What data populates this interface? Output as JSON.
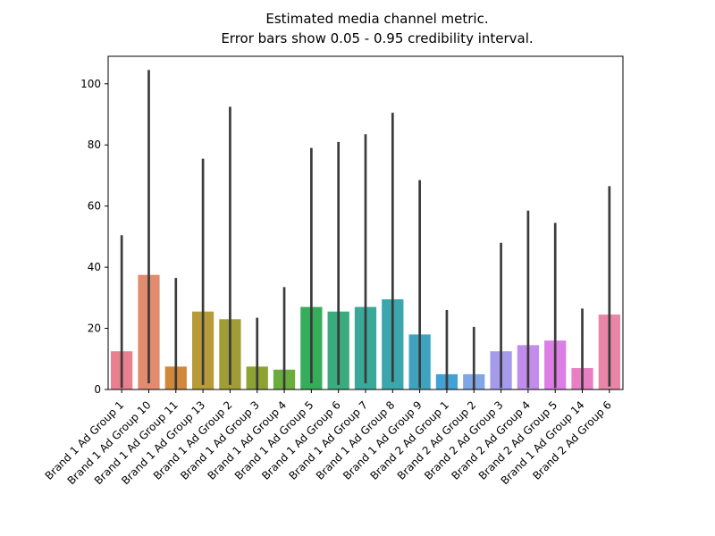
{
  "chart_data": {
    "type": "bar",
    "title_lines": [
      "Estimated media channel metric.",
      "Error bars show 0.05 - 0.95 credibility interval."
    ],
    "xlabel": "",
    "ylabel": "",
    "ylim": [
      0,
      109
    ],
    "yticks": [
      0,
      20,
      40,
      60,
      80,
      100
    ],
    "ytick_labels": [
      "0",
      "20",
      "40",
      "60",
      "80",
      "100"
    ],
    "categories": [
      "Brand 1 Ad Group 1",
      "Brand 1 Ad Group 10",
      "Brand 1 Ad Group 11",
      "Brand 1 Ad Group 13",
      "Brand 1 Ad Group 2",
      "Brand 1 Ad Group 3",
      "Brand 1 Ad Group 4",
      "Brand 1 Ad Group 5",
      "Brand 1 Ad Group 6",
      "Brand 1 Ad Group 7",
      "Brand 1 Ad Group 8",
      "Brand 1 Ad Group 9",
      "Brand 2 Ad Group 1",
      "Brand 2 Ad Group 2",
      "Brand 2 Ad Group 3",
      "Brand 2 Ad Group 4",
      "Brand 2 Ad Group 5",
      "Brand 1 Ad Group 14",
      "Brand 2 Ad Group 6"
    ],
    "values": [
      12.5,
      37.5,
      7.5,
      25.5,
      23.0,
      7.5,
      6.5,
      27.0,
      25.5,
      27.0,
      29.5,
      18.0,
      5.0,
      5.0,
      12.5,
      14.5,
      16.0,
      7.0,
      24.5
    ],
    "error_low": [
      0.5,
      2.0,
      0.0,
      1.5,
      1.5,
      0.0,
      0.0,
      2.0,
      1.5,
      2.0,
      2.5,
      0.5,
      0.0,
      0.0,
      0.5,
      0.5,
      0.5,
      0.0,
      1.0
    ],
    "error_high": [
      50.5,
      104.5,
      36.5,
      75.5,
      92.5,
      23.5,
      33.5,
      79.0,
      81.0,
      83.5,
      90.5,
      68.5,
      26.0,
      20.5,
      48.0,
      58.5,
      54.5,
      26.5,
      66.5
    ],
    "colors": [
      "#e8808f",
      "#e38b6e",
      "#d0883a",
      "#b79a3a",
      "#a29c36",
      "#8ea233",
      "#6bad3c",
      "#36ad5b",
      "#39ab7f",
      "#3aa99a",
      "#3ba6ac",
      "#3fa3c0",
      "#44a1d6",
      "#80a6e6",
      "#a49ceb",
      "#c28cec",
      "#dc7ee6",
      "#e87ec3",
      "#e985a6"
    ],
    "grid": false,
    "legend": "none"
  }
}
